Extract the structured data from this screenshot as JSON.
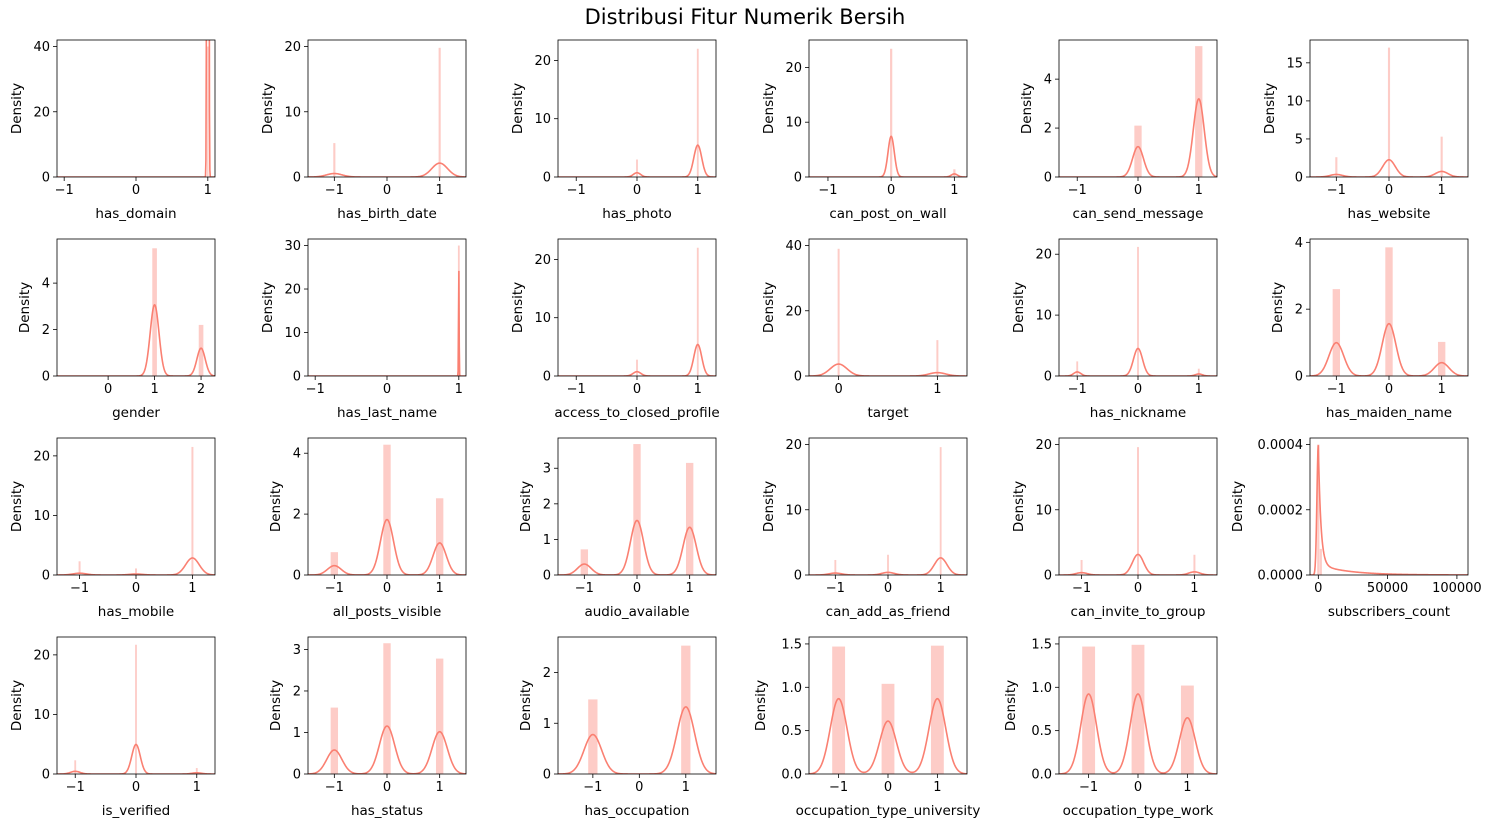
{
  "title": "Distribusi Fitur Numerik Bersih",
  "colors": {
    "bar": "#fa8072",
    "bar_alpha": 0.4,
    "kde": "#fa8072",
    "axis": "#000000"
  },
  "chart_data": [
    {
      "type": "histogram+kde",
      "xlabel": "has_domain",
      "ylabel": "Density",
      "xlim": [
        -1.1,
        1.1
      ],
      "xticks": [
        -1,
        0,
        1
      ],
      "ylim": [
        0,
        42
      ],
      "yticks": [
        0,
        20,
        40
      ],
      "bars": [
        {
          "x": 1,
          "h": 40,
          "w": 0.02
        }
      ],
      "kde": [
        {
          "mu": 1,
          "w": 25,
          "s": 0.008
        }
      ]
    },
    {
      "type": "histogram+kde",
      "xlabel": "has_birth_date",
      "ylabel": "Density",
      "xlim": [
        -1.5,
        1.5
      ],
      "xticks": [
        -1,
        0,
        1
      ],
      "ylim": [
        0,
        21
      ],
      "yticks": [
        0,
        10,
        20
      ],
      "bars": [
        {
          "x": -1,
          "h": 5.2,
          "w": 0.04
        },
        {
          "x": 1,
          "h": 19.8,
          "w": 0.04
        }
      ],
      "kde": [
        {
          "mu": -1,
          "w": 0.2,
          "s": 0.15
        },
        {
          "mu": 1,
          "w": 0.8,
          "s": 0.15
        }
      ]
    },
    {
      "type": "histogram+kde",
      "xlabel": "has_photo",
      "ylabel": "Density",
      "xlim": [
        -1.3,
        1.3
      ],
      "xticks": [
        -1,
        0,
        1
      ],
      "ylim": [
        0,
        23.5
      ],
      "yticks": [
        0,
        10,
        20
      ],
      "bars": [
        {
          "x": 0,
          "h": 3,
          "w": 0.03
        },
        {
          "x": 1,
          "h": 22,
          "w": 0.03
        }
      ],
      "kde": [
        {
          "mu": 0,
          "w": 0.11,
          "s": 0.06
        },
        {
          "mu": 1,
          "w": 0.89,
          "s": 0.065
        }
      ]
    },
    {
      "type": "histogram+kde",
      "xlabel": "can_post_on_wall",
      "ylabel": "Density",
      "xlim": [
        -1.3,
        1.2
      ],
      "xticks": [
        -1,
        0,
        1
      ],
      "ylim": [
        0,
        25
      ],
      "yticks": [
        0,
        10,
        20
      ],
      "bars": [
        {
          "x": 0,
          "h": 23.4,
          "w": 0.035
        },
        {
          "x": 1,
          "h": 1.4,
          "w": 0.035
        }
      ],
      "kde": [
        {
          "mu": 0,
          "w": 0.93,
          "s": 0.05
        },
        {
          "mu": 1,
          "w": 0.07,
          "s": 0.05
        }
      ]
    },
    {
      "type": "histogram+kde",
      "xlabel": "can_send_message",
      "ylabel": "Density",
      "xlim": [
        -1.3,
        1.3
      ],
      "xticks": [
        -1,
        0,
        1
      ],
      "ylim": [
        0,
        5.6
      ],
      "yticks": [
        0,
        2,
        4
      ],
      "bars": [
        {
          "x": 0,
          "h": 2.1,
          "w": 0.12
        },
        {
          "x": 1,
          "h": 5.35,
          "w": 0.12
        }
      ],
      "kde": [
        {
          "mu": 0,
          "w": 0.28,
          "s": 0.09
        },
        {
          "mu": 1,
          "w": 0.72,
          "s": 0.09
        }
      ]
    },
    {
      "type": "histogram+kde",
      "xlabel": "has_website",
      "ylabel": "Density",
      "xlim": [
        -1.5,
        1.5
      ],
      "xticks": [
        -1,
        0,
        1
      ],
      "ylim": [
        0,
        18
      ],
      "yticks": [
        0,
        5,
        10,
        15
      ],
      "bars": [
        {
          "x": -1,
          "h": 2.6,
          "w": 0.04
        },
        {
          "x": 0,
          "h": 17,
          "w": 0.04
        },
        {
          "x": 1,
          "h": 5.3,
          "w": 0.04
        }
      ],
      "kde": [
        {
          "mu": -1,
          "w": 0.1,
          "s": 0.12
        },
        {
          "mu": 0,
          "w": 0.68,
          "s": 0.12
        },
        {
          "mu": 1,
          "w": 0.22,
          "s": 0.12
        }
      ]
    },
    {
      "type": "histogram+kde",
      "xlabel": "gender",
      "ylabel": "Density",
      "xlim": [
        -1.1,
        2.3
      ],
      "xticks": [
        0,
        1,
        2
      ],
      "ylim": [
        0,
        5.9
      ],
      "yticks": [
        0,
        2,
        4
      ],
      "bars": [
        {
          "x": 1,
          "h": 5.5,
          "w": 0.1
        },
        {
          "x": 2,
          "h": 2.2,
          "w": 0.1
        }
      ],
      "kde": [
        {
          "mu": 1,
          "w": 0.73,
          "s": 0.095
        },
        {
          "mu": 2,
          "w": 0.27,
          "s": 0.09
        }
      ]
    },
    {
      "type": "histogram+kde",
      "xlabel": "has_last_name",
      "ylabel": "Density",
      "xlim": [
        -1.1,
        1.1
      ],
      "xticks": [
        -1,
        0,
        1
      ],
      "ylim": [
        0,
        31.5
      ],
      "yticks": [
        0,
        10,
        20,
        30
      ],
      "bars": [
        {
          "x": 1,
          "h": 30,
          "w": 0.025
        }
      ],
      "kde": [
        {
          "mu": 1,
          "w": 0.25,
          "s": 0.004
        }
      ]
    },
    {
      "type": "histogram+kde",
      "xlabel": "access_to_closed_profile",
      "ylabel": "Density",
      "xlim": [
        -1.3,
        1.3
      ],
      "xticks": [
        -1,
        0,
        1
      ],
      "ylim": [
        0,
        23.5
      ],
      "yticks": [
        0,
        10,
        20
      ],
      "bars": [
        {
          "x": 0,
          "h": 2.8,
          "w": 0.03
        },
        {
          "x": 1,
          "h": 22,
          "w": 0.03
        }
      ],
      "kde": [
        {
          "mu": 0,
          "w": 0.12,
          "s": 0.065
        },
        {
          "mu": 1,
          "w": 0.88,
          "s": 0.065
        }
      ]
    },
    {
      "type": "histogram+kde",
      "xlabel": "target",
      "ylabel": "Density",
      "xlim": [
        -0.3,
        1.3
      ],
      "xticks": [
        0,
        1
      ],
      "ylim": [
        0,
        42
      ],
      "yticks": [
        0,
        20,
        40
      ],
      "bars": [
        {
          "x": 0,
          "h": 39,
          "w": 0.02
        },
        {
          "x": 1,
          "h": 11,
          "w": 0.02
        }
      ],
      "kde": [
        {
          "mu": 0,
          "w": 0.78,
          "s": 0.085
        },
        {
          "mu": 1,
          "w": 0.22,
          "s": 0.085
        }
      ]
    },
    {
      "type": "histogram+kde",
      "xlabel": "has_nickname",
      "ylabel": "Density",
      "xlim": [
        -1.3,
        1.3
      ],
      "xticks": [
        -1,
        0,
        1
      ],
      "ylim": [
        0,
        22.5
      ],
      "yticks": [
        0,
        10,
        20
      ],
      "bars": [
        {
          "x": -1,
          "h": 2.4,
          "w": 0.03
        },
        {
          "x": 0,
          "h": 21.2,
          "w": 0.03
        },
        {
          "x": 1,
          "h": 1.2,
          "w": 0.03
        }
      ],
      "kde": [
        {
          "mu": -1,
          "w": 0.1,
          "s": 0.06
        },
        {
          "mu": 0,
          "w": 0.85,
          "s": 0.075
        },
        {
          "mu": 1,
          "w": 0.05,
          "s": 0.06
        }
      ]
    },
    {
      "type": "histogram+kde",
      "xlabel": "has_maiden_name",
      "ylabel": "Density",
      "xlim": [
        -1.5,
        1.5
      ],
      "xticks": [
        -1,
        0,
        1
      ],
      "ylim": [
        0,
        4.1
      ],
      "yticks": [
        0,
        2,
        4
      ],
      "bars": [
        {
          "x": -1,
          "h": 2.6,
          "w": 0.14
        },
        {
          "x": 0,
          "h": 3.85,
          "w": 0.14
        },
        {
          "x": 1,
          "h": 1.02,
          "w": 0.14
        }
      ],
      "kde": [
        {
          "mu": -1,
          "w": 0.35,
          "s": 0.14
        },
        {
          "mu": 0,
          "w": 0.51,
          "s": 0.13
        },
        {
          "mu": 1,
          "w": 0.14,
          "s": 0.14
        }
      ]
    },
    {
      "type": "histogram+kde",
      "xlabel": "has_mobile",
      "ylabel": "Density",
      "xlim": [
        -1.4,
        1.4
      ],
      "xticks": [
        -1,
        0,
        1
      ],
      "ylim": [
        0,
        23
      ],
      "yticks": [
        0,
        10,
        20
      ],
      "bars": [
        {
          "x": -1,
          "h": 2.3,
          "w": 0.035
        },
        {
          "x": 0,
          "h": 1.1,
          "w": 0.035
        },
        {
          "x": 1,
          "h": 21.5,
          "w": 0.035
        }
      ],
      "kde": [
        {
          "mu": -1,
          "w": 0.09,
          "s": 0.12
        },
        {
          "mu": 0,
          "w": 0.05,
          "s": 0.12
        },
        {
          "mu": 1,
          "w": 0.86,
          "s": 0.12
        }
      ]
    },
    {
      "type": "histogram+kde",
      "xlabel": "all_posts_visible",
      "ylabel": "Density",
      "xlim": [
        -1.5,
        1.5
      ],
      "xticks": [
        -1,
        0,
        1
      ],
      "ylim": [
        0,
        4.5
      ],
      "yticks": [
        0,
        2,
        4
      ],
      "bars": [
        {
          "x": -1,
          "h": 0.75,
          "w": 0.14
        },
        {
          "x": 0,
          "h": 4.28,
          "w": 0.14
        },
        {
          "x": 1,
          "h": 2.52,
          "w": 0.14
        }
      ],
      "kde": [
        {
          "mu": -1,
          "w": 0.1,
          "s": 0.13
        },
        {
          "mu": 0,
          "w": 0.57,
          "s": 0.125
        },
        {
          "mu": 1,
          "w": 0.33,
          "s": 0.125
        }
      ]
    },
    {
      "type": "histogram+kde",
      "xlabel": "audio_available",
      "ylabel": "Density",
      "xlim": [
        -1.5,
        1.5
      ],
      "xticks": [
        -1,
        0,
        1
      ],
      "ylim": [
        0,
        3.85
      ],
      "yticks": [
        0,
        1,
        2,
        3
      ],
      "bars": [
        {
          "x": -1,
          "h": 0.72,
          "w": 0.14
        },
        {
          "x": 0,
          "h": 3.68,
          "w": 0.14
        },
        {
          "x": 1,
          "h": 3.15,
          "w": 0.14
        }
      ],
      "kde": [
        {
          "mu": -1,
          "w": 0.1,
          "s": 0.13
        },
        {
          "mu": 0,
          "w": 0.48,
          "s": 0.125
        },
        {
          "mu": 1,
          "w": 0.42,
          "s": 0.125
        }
      ]
    },
    {
      "type": "histogram+kde",
      "xlabel": "can_add_as_friend",
      "ylabel": "Density",
      "xlim": [
        -1.5,
        1.5
      ],
      "xticks": [
        -1,
        0,
        1
      ],
      "ylim": [
        0,
        21
      ],
      "yticks": [
        0,
        10,
        20
      ],
      "bars": [
        {
          "x": -1,
          "h": 2.3,
          "w": 0.035
        },
        {
          "x": 0,
          "h": 3.1,
          "w": 0.035
        },
        {
          "x": 1,
          "h": 19.6,
          "w": 0.035
        }
      ],
      "kde": [
        {
          "mu": -1,
          "w": 0.09,
          "s": 0.12
        },
        {
          "mu": 0,
          "w": 0.12,
          "s": 0.12
        },
        {
          "mu": 1,
          "w": 0.79,
          "s": 0.12
        }
      ]
    },
    {
      "type": "histogram+kde",
      "xlabel": "can_invite_to_group",
      "ylabel": "Density",
      "xlim": [
        -1.4,
        1.4
      ],
      "xticks": [
        -1,
        0,
        1
      ],
      "ylim": [
        0,
        21
      ],
      "yticks": [
        0,
        10,
        20
      ],
      "bars": [
        {
          "x": -1,
          "h": 2.3,
          "w": 0.035
        },
        {
          "x": 0,
          "h": 19.6,
          "w": 0.035
        },
        {
          "x": 1,
          "h": 3.1,
          "w": 0.035
        }
      ],
      "kde": [
        {
          "mu": -1,
          "w": 0.09,
          "s": 0.1
        },
        {
          "mu": 0,
          "w": 0.79,
          "s": 0.1
        },
        {
          "mu": 1,
          "w": 0.12,
          "s": 0.1
        }
      ]
    },
    {
      "type": "histogram+kde",
      "xlabel": "subscribers_count",
      "ylabel": "Density",
      "xlim": [
        -6000,
        108000
      ],
      "xticks": [
        0,
        50000,
        100000
      ],
      "ylim": [
        0,
        0.00042
      ],
      "yticks": [
        0,
        0.0002,
        0.0004
      ],
      "ytick_labels": [
        "0.0000",
        "0.0002",
        "0.0004"
      ],
      "bars": [
        {
          "x": 0,
          "h": 0.0004,
          "w": 1600
        },
        {
          "x": 1800,
          "h": 8e-05,
          "w": 1600
        }
      ],
      "kde_skew": {
        "scale": 1800,
        "peak": 0.000398
      }
    },
    {
      "type": "histogram+kde",
      "xlabel": "is_verified",
      "ylabel": "Density",
      "xlim": [
        -1.3,
        1.3
      ],
      "xticks": [
        -1,
        0,
        1
      ],
      "ylim": [
        0,
        23
      ],
      "yticks": [
        0,
        10,
        20
      ],
      "bars": [
        {
          "x": -1,
          "h": 2.3,
          "w": 0.03
        },
        {
          "x": 0,
          "h": 21.7,
          "w": 0.03
        },
        {
          "x": 1,
          "h": 1.0,
          "w": 0.03
        }
      ],
      "kde": [
        {
          "mu": -1,
          "w": 0.09,
          "s": 0.08
        },
        {
          "mu": 0,
          "w": 0.87,
          "s": 0.07
        },
        {
          "mu": 1,
          "w": 0.04,
          "s": 0.08
        }
      ]
    },
    {
      "type": "histogram+kde",
      "xlabel": "has_status",
      "ylabel": "Density",
      "xlim": [
        -1.5,
        1.5
      ],
      "xticks": [
        -1,
        0,
        1
      ],
      "ylim": [
        0,
        3.3
      ],
      "yticks": [
        0,
        1,
        2,
        3
      ],
      "bars": [
        {
          "x": -1,
          "h": 1.6,
          "w": 0.14
        },
        {
          "x": 0,
          "h": 3.15,
          "w": 0.14
        },
        {
          "x": 1,
          "h": 2.78,
          "w": 0.14
        }
      ],
      "kde": [
        {
          "mu": -1,
          "w": 0.21,
          "s": 0.145
        },
        {
          "mu": 0,
          "w": 0.42,
          "s": 0.145
        },
        {
          "mu": 1,
          "w": 0.37,
          "s": 0.145
        }
      ]
    },
    {
      "type": "histogram+kde",
      "xlabel": "has_occupation",
      "ylabel": "Density",
      "xlim": [
        -1.75,
        1.65
      ],
      "xticks": [
        -1,
        0,
        1
      ],
      "ylim": [
        0,
        2.7
      ],
      "yticks": [
        0,
        1,
        2
      ],
      "bars": [
        {
          "x": -1,
          "h": 1.47,
          "w": 0.2
        },
        {
          "x": 1,
          "h": 2.53,
          "w": 0.2
        }
      ],
      "kde": [
        {
          "mu": -1,
          "w": 0.37,
          "s": 0.19
        },
        {
          "mu": 1,
          "w": 0.63,
          "s": 0.19
        }
      ]
    },
    {
      "type": "histogram+kde",
      "xlabel": "occupation_type_university",
      "ylabel": "Density",
      "xlim": [
        -1.6,
        1.6
      ],
      "xticks": [
        -1,
        0,
        1
      ],
      "ylim": [
        0,
        1.58
      ],
      "yticks": [
        0,
        0.5,
        1.0,
        1.5
      ],
      "ytick_labels": [
        "0.0",
        "0.5",
        "1.0",
        "1.5"
      ],
      "bars": [
        {
          "x": -1,
          "h": 1.47,
          "w": 0.26
        },
        {
          "x": 0,
          "h": 1.04,
          "w": 0.26
        },
        {
          "x": 1,
          "h": 1.48,
          "w": 0.26
        }
      ],
      "kde": [
        {
          "mu": -1,
          "w": 0.37,
          "s": 0.17
        },
        {
          "mu": 0,
          "w": 0.26,
          "s": 0.17
        },
        {
          "mu": 1,
          "w": 0.37,
          "s": 0.17
        }
      ]
    },
    {
      "type": "histogram+kde",
      "xlabel": "occupation_type_work",
      "ylabel": "Density",
      "xlim": [
        -1.6,
        1.6
      ],
      "xticks": [
        -1,
        0,
        1
      ],
      "ylim": [
        0,
        1.58
      ],
      "yticks": [
        0,
        0.5,
        1.0,
        1.5
      ],
      "ytick_labels": [
        "0.0",
        "0.5",
        "1.0",
        "1.5"
      ],
      "bars": [
        {
          "x": -1,
          "h": 1.47,
          "w": 0.26
        },
        {
          "x": 0,
          "h": 1.49,
          "w": 0.26
        },
        {
          "x": 1,
          "h": 1.02,
          "w": 0.26
        }
      ],
      "kde": [
        {
          "mu": -1,
          "w": 0.37,
          "s": 0.16
        },
        {
          "mu": 0,
          "w": 0.37,
          "s": 0.16
        },
        {
          "mu": 1,
          "w": 0.26,
          "s": 0.16
        }
      ]
    }
  ]
}
